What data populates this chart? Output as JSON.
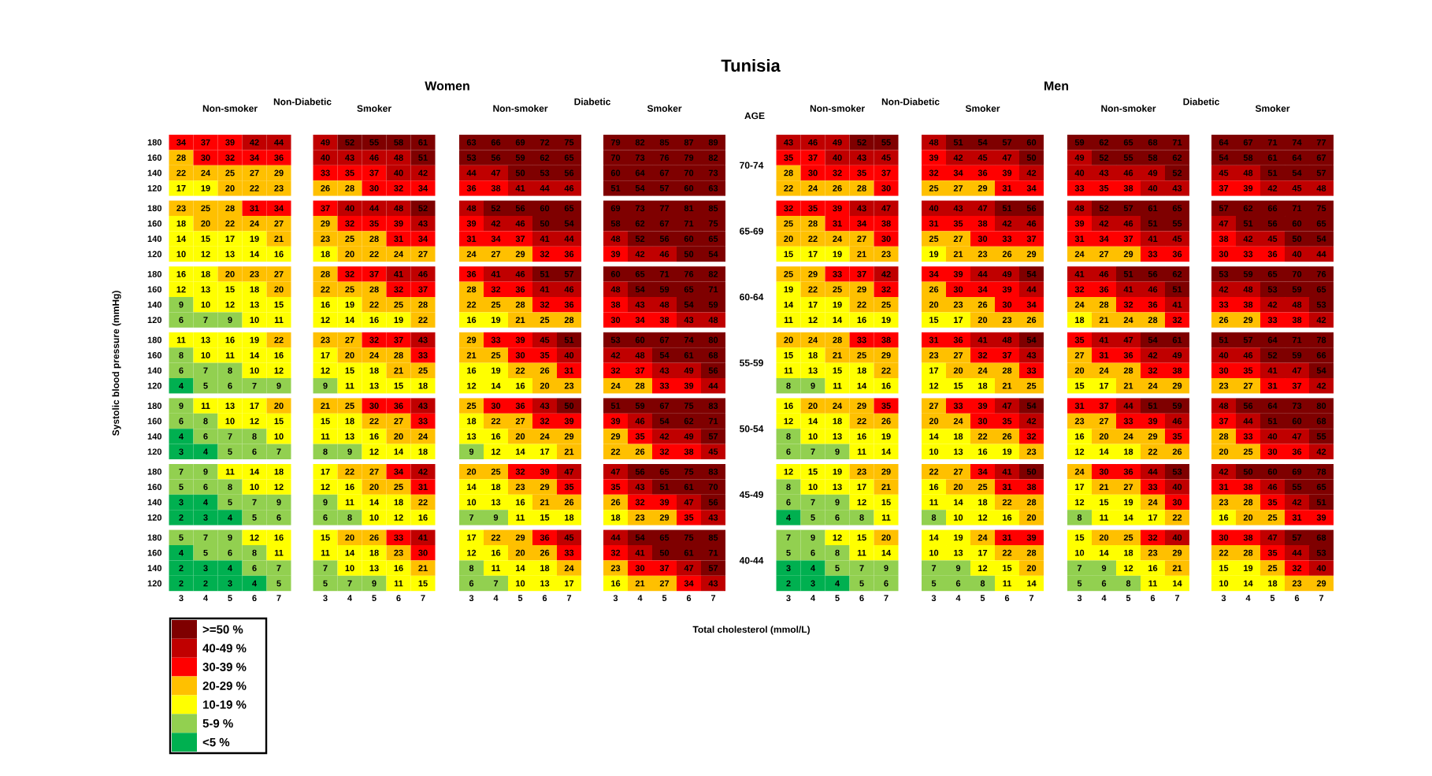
{
  "chart_data": [
    {
      "type": "other",
      "title": "Tunisia",
      "xlabel": "Total cholesterol (mmol/L)",
      "ylabel": "Systolic blood pressure (mmHg)",
      "annotations": [
        "Women",
        "Men",
        "Non-Diabetic",
        "Diabetic",
        "Non-Diabetic",
        "Diabetic",
        "AGE",
        "70-74",
        "65-69",
        "60-64",
        "55-59",
        "50-54",
        "45-49",
        "40-44"
      ]
    },
    {
      "type": "heatmap",
      "title": "Non-smoker",
      "categories": [
        "3",
        "4",
        "5",
        "6",
        "7"
      ],
      "y_categories": [
        "180",
        "160",
        "140",
        "120",
        "180",
        "160",
        "140",
        "120",
        "180",
        "160",
        "140",
        "120",
        "180",
        "160",
        "140",
        "120",
        "180",
        "160",
        "140",
        "120",
        "180",
        "160",
        "140",
        "120",
        "180",
        "160",
        "140",
        "120"
      ],
      "data_labels": true,
      "cells": [
        [
          34,
          37,
          39,
          42,
          44
        ],
        [
          28,
          30,
          32,
          34,
          36
        ],
        [
          22,
          24,
          25,
          27,
          29
        ],
        [
          17,
          19,
          20,
          22,
          23
        ],
        [
          23,
          25,
          28,
          31,
          34
        ],
        [
          18,
          20,
          22,
          24,
          27
        ],
        [
          14,
          15,
          17,
          19,
          21
        ],
        [
          10,
          12,
          13,
          14,
          16
        ],
        [
          16,
          18,
          20,
          23,
          27
        ],
        [
          12,
          13,
          15,
          18,
          20
        ],
        [
          9,
          10,
          12,
          13,
          15
        ],
        [
          6,
          7,
          9,
          10,
          11
        ],
        [
          11,
          13,
          16,
          19,
          22
        ],
        [
          8,
          10,
          11,
          14,
          16
        ],
        [
          6,
          7,
          8,
          10,
          12
        ],
        [
          4,
          5,
          6,
          7,
          9
        ],
        [
          9,
          11,
          13,
          17,
          20
        ],
        [
          6,
          8,
          10,
          12,
          15
        ],
        [
          4,
          6,
          7,
          8,
          10
        ],
        [
          3,
          4,
          5,
          6,
          7
        ],
        [
          7,
          9,
          11,
          14,
          18
        ],
        [
          5,
          6,
          8,
          10,
          12
        ],
        [
          3,
          4,
          5,
          7,
          9
        ],
        [
          2,
          3,
          4,
          5,
          6
        ],
        [
          5,
          7,
          9,
          12,
          16
        ],
        [
          4,
          5,
          6,
          8,
          11
        ],
        [
          2,
          3,
          4,
          6,
          7
        ],
        [
          2,
          2,
          3,
          4,
          5
        ]
      ]
    },
    {
      "type": "heatmap",
      "title": "Smoker",
      "tick_labels": "x",
      "categories": [
        "3",
        "4",
        "5",
        "6",
        "7"
      ],
      "y_categories": [
        null,
        null,
        null,
        null,
        null,
        null,
        null,
        null,
        null,
        null,
        null,
        null,
        null,
        null,
        null,
        null,
        null,
        null,
        null,
        null,
        null,
        null,
        null,
        null,
        null,
        null,
        null,
        null
      ],
      "data_labels": true,
      "cells": [
        [
          49,
          52,
          55,
          58,
          61
        ],
        [
          40,
          43,
          46,
          48,
          51
        ],
        [
          33,
          35,
          37,
          40,
          42
        ],
        [
          26,
          28,
          30,
          32,
          34
        ],
        [
          37,
          40,
          44,
          48,
          52
        ],
        [
          29,
          32,
          35,
          39,
          43
        ],
        [
          23,
          25,
          28,
          31,
          34
        ],
        [
          18,
          20,
          22,
          24,
          27
        ],
        [
          28,
          32,
          37,
          41,
          46
        ],
        [
          22,
          25,
          28,
          32,
          37
        ],
        [
          16,
          19,
          22,
          25,
          28
        ],
        [
          12,
          14,
          16,
          19,
          22
        ],
        [
          23,
          27,
          32,
          37,
          43
        ],
        [
          17,
          20,
          24,
          28,
          33
        ],
        [
          12,
          15,
          18,
          21,
          25
        ],
        [
          9,
          11,
          13,
          15,
          18
        ],
        [
          21,
          25,
          30,
          36,
          43
        ],
        [
          15,
          18,
          22,
          27,
          33
        ],
        [
          11,
          13,
          16,
          20,
          24
        ],
        [
          8,
          9,
          12,
          14,
          18
        ],
        [
          17,
          22,
          27,
          34,
          42
        ],
        [
          12,
          16,
          20,
          25,
          31
        ],
        [
          9,
          11,
          14,
          18,
          22
        ],
        [
          6,
          8,
          10,
          12,
          16
        ],
        [
          15,
          20,
          26,
          33,
          41
        ],
        [
          11,
          14,
          18,
          23,
          30
        ],
        [
          7,
          10,
          13,
          16,
          21
        ],
        [
          5,
          7,
          9,
          11,
          15
        ]
      ]
    },
    {
      "type": "heatmap",
      "title": "Non-smoker",
      "tick_labels": "x",
      "categories": [
        "3",
        "4",
        "5",
        "6",
        "7"
      ],
      "y_categories": [
        null,
        null,
        null,
        null,
        null,
        null,
        null,
        null,
        null,
        null,
        null,
        null,
        null,
        null,
        null,
        null,
        null,
        null,
        null,
        null,
        null,
        null,
        null,
        null,
        null,
        null,
        null,
        null
      ],
      "data_labels": true,
      "cells": [
        [
          63,
          66,
          69,
          72,
          75
        ],
        [
          53,
          56,
          59,
          62,
          65
        ],
        [
          44,
          47,
          50,
          53,
          56
        ],
        [
          36,
          38,
          41,
          44,
          46
        ],
        [
          48,
          52,
          56,
          60,
          65
        ],
        [
          39,
          42,
          46,
          50,
          54
        ],
        [
          31,
          34,
          37,
          41,
          44
        ],
        [
          24,
          27,
          29,
          32,
          36
        ],
        [
          36,
          41,
          46,
          51,
          57
        ],
        [
          28,
          32,
          36,
          41,
          46
        ],
        [
          22,
          25,
          28,
          32,
          36
        ],
        [
          16,
          19,
          21,
          25,
          28
        ],
        [
          29,
          33,
          39,
          45,
          51
        ],
        [
          21,
          25,
          30,
          35,
          40
        ],
        [
          16,
          19,
          22,
          26,
          31
        ],
        [
          12,
          14,
          16,
          20,
          23
        ],
        [
          25,
          30,
          36,
          43,
          50
        ],
        [
          18,
          22,
          27,
          32,
          39
        ],
        [
          13,
          16,
          20,
          24,
          29
        ],
        [
          9,
          12,
          14,
          17,
          21
        ],
        [
          20,
          25,
          32,
          39,
          47
        ],
        [
          14,
          18,
          23,
          29,
          35
        ],
        [
          10,
          13,
          16,
          21,
          26
        ],
        [
          7,
          9,
          11,
          15,
          18
        ],
        [
          17,
          22,
          29,
          36,
          45
        ],
        [
          12,
          16,
          20,
          26,
          33
        ],
        [
          8,
          11,
          14,
          18,
          24
        ],
        [
          6,
          7,
          10,
          13,
          17
        ]
      ]
    },
    {
      "type": "heatmap",
      "title": "Smoker",
      "tick_labels": "x",
      "categories": [
        "3",
        "4",
        "5",
        "6",
        "7"
      ],
      "y_categories": [
        null,
        null,
        null,
        null,
        null,
        null,
        null,
        null,
        null,
        null,
        null,
        null,
        null,
        null,
        null,
        null,
        null,
        null,
        null,
        null,
        null,
        null,
        null,
        null,
        null,
        null,
        null,
        null
      ],
      "data_labels": true,
      "cells": [
        [
          79,
          82,
          85,
          87,
          89
        ],
        [
          70,
          73,
          76,
          79,
          82
        ],
        [
          60,
          64,
          67,
          70,
          73
        ],
        [
          51,
          54,
          57,
          60,
          63
        ],
        [
          69,
          73,
          77,
          81,
          85
        ],
        [
          58,
          62,
          67,
          71,
          75
        ],
        [
          48,
          52,
          56,
          60,
          65
        ],
        [
          39,
          42,
          46,
          50,
          54
        ],
        [
          60,
          65,
          71,
          76,
          82
        ],
        [
          48,
          54,
          59,
          65,
          71
        ],
        [
          38,
          43,
          48,
          54,
          59
        ],
        [
          30,
          34,
          38,
          43,
          48
        ],
        [
          53,
          60,
          67,
          74,
          80
        ],
        [
          42,
          48,
          54,
          61,
          68
        ],
        [
          32,
          37,
          43,
          49,
          56
        ],
        [
          24,
          28,
          33,
          39,
          44
        ],
        [
          51,
          59,
          67,
          75,
          83
        ],
        [
          39,
          46,
          54,
          62,
          71
        ],
        [
          29,
          35,
          42,
          49,
          57
        ],
        [
          22,
          26,
          32,
          38,
          45
        ],
        [
          47,
          56,
          65,
          75,
          83
        ],
        [
          35,
          43,
          51,
          61,
          70
        ],
        [
          26,
          32,
          39,
          47,
          56
        ],
        [
          18,
          23,
          29,
          35,
          43
        ],
        [
          44,
          54,
          65,
          75,
          85
        ],
        [
          32,
          41,
          50,
          61,
          71
        ],
        [
          23,
          30,
          37,
          47,
          57
        ],
        [
          16,
          21,
          27,
          34,
          43
        ]
      ]
    },
    {
      "type": "heatmap",
      "title": "Non-smoker",
      "tick_labels": "x",
      "categories": [
        "3",
        "4",
        "5",
        "6",
        "7"
      ],
      "y_categories": [
        null,
        null,
        null,
        null,
        null,
        null,
        null,
        null,
        null,
        null,
        null,
        null,
        null,
        null,
        null,
        null,
        null,
        null,
        null,
        null,
        null,
        null,
        null,
        null,
        null,
        null,
        null,
        null
      ],
      "data_labels": true,
      "cells": [
        [
          43,
          46,
          49,
          52,
          55
        ],
        [
          35,
          37,
          40,
          43,
          45
        ],
        [
          28,
          30,
          32,
          35,
          37
        ],
        [
          22,
          24,
          26,
          28,
          30
        ],
        [
          32,
          35,
          39,
          43,
          47
        ],
        [
          25,
          28,
          31,
          34,
          38
        ],
        [
          20,
          22,
          24,
          27,
          30
        ],
        [
          15,
          17,
          19,
          21,
          23
        ],
        [
          25,
          29,
          33,
          37,
          42
        ],
        [
          19,
          22,
          25,
          29,
          32
        ],
        [
          14,
          17,
          19,
          22,
          25
        ],
        [
          11,
          12,
          14,
          16,
          19
        ],
        [
          20,
          24,
          28,
          33,
          38
        ],
        [
          15,
          18,
          21,
          25,
          29
        ],
        [
          11,
          13,
          15,
          18,
          22
        ],
        [
          8,
          9,
          11,
          14,
          16
        ],
        [
          16,
          20,
          24,
          29,
          35
        ],
        [
          12,
          14,
          18,
          22,
          26
        ],
        [
          8,
          10,
          13,
          16,
          19
        ],
        [
          6,
          7,
          9,
          11,
          14
        ],
        [
          12,
          15,
          19,
          23,
          29
        ],
        [
          8,
          10,
          13,
          17,
          21
        ],
        [
          6,
          7,
          9,
          12,
          15
        ],
        [
          4,
          5,
          6,
          8,
          11
        ],
        [
          7,
          9,
          12,
          15,
          20
        ],
        [
          5,
          6,
          8,
          11,
          14
        ],
        [
          3,
          4,
          5,
          7,
          9
        ],
        [
          2,
          3,
          4,
          5,
          6
        ]
      ]
    },
    {
      "type": "heatmap",
      "title": "Smoker",
      "tick_labels": "x",
      "categories": [
        "3",
        "4",
        "5",
        "6",
        "7"
      ],
      "y_categories": [
        null,
        null,
        null,
        null,
        null,
        null,
        null,
        null,
        null,
        null,
        null,
        null,
        null,
        null,
        null,
        null,
        null,
        null,
        null,
        null,
        null,
        null,
        null,
        null,
        null,
        null,
        null,
        null
      ],
      "data_labels": true,
      "cells": [
        [
          48,
          51,
          54,
          57,
          60
        ],
        [
          39,
          42,
          45,
          47,
          50
        ],
        [
          32,
          34,
          36,
          39,
          42
        ],
        [
          25,
          27,
          29,
          31,
          34
        ],
        [
          40,
          43,
          47,
          51,
          56
        ],
        [
          31,
          35,
          38,
          42,
          46
        ],
        [
          25,
          27,
          30,
          33,
          37
        ],
        [
          19,
          21,
          23,
          26,
          29
        ],
        [
          34,
          39,
          44,
          49,
          54
        ],
        [
          26,
          30,
          34,
          39,
          44
        ],
        [
          20,
          23,
          26,
          30,
          34
        ],
        [
          15,
          17,
          20,
          23,
          26
        ],
        [
          31,
          36,
          41,
          48,
          54
        ],
        [
          23,
          27,
          32,
          37,
          43
        ],
        [
          17,
          20,
          24,
          28,
          33
        ],
        [
          12,
          15,
          18,
          21,
          25
        ],
        [
          27,
          33,
          39,
          47,
          54
        ],
        [
          20,
          24,
          30,
          35,
          42
        ],
        [
          14,
          18,
          22,
          26,
          32
        ],
        [
          10,
          13,
          16,
          19,
          23
        ],
        [
          22,
          27,
          34,
          41,
          50
        ],
        [
          16,
          20,
          25,
          31,
          38
        ],
        [
          11,
          14,
          18,
          22,
          28
        ],
        [
          8,
          10,
          12,
          16,
          20
        ],
        [
          14,
          19,
          24,
          31,
          39
        ],
        [
          10,
          13,
          17,
          22,
          28
        ],
        [
          7,
          9,
          12,
          15,
          20
        ],
        [
          5,
          6,
          8,
          11,
          14
        ]
      ]
    },
    {
      "type": "heatmap",
      "title": "Non-smoker",
      "tick_labels": "x",
      "categories": [
        "3",
        "4",
        "5",
        "6",
        "7"
      ],
      "y_categories": [
        null,
        null,
        null,
        null,
        null,
        null,
        null,
        null,
        null,
        null,
        null,
        null,
        null,
        null,
        null,
        null,
        null,
        null,
        null,
        null,
        null,
        null,
        null,
        null,
        null,
        null,
        null,
        null
      ],
      "data_labels": true,
      "cells": [
        [
          59,
          62,
          65,
          68,
          71
        ],
        [
          49,
          52,
          55,
          58,
          62
        ],
        [
          40,
          43,
          46,
          49,
          52
        ],
        [
          33,
          35,
          38,
          40,
          43
        ],
        [
          48,
          52,
          57,
          61,
          65
        ],
        [
          39,
          42,
          46,
          51,
          55
        ],
        [
          31,
          34,
          37,
          41,
          45
        ],
        [
          24,
          27,
          29,
          33,
          36
        ],
        [
          41,
          46,
          51,
          56,
          62
        ],
        [
          32,
          36,
          41,
          46,
          51
        ],
        [
          24,
          28,
          32,
          36,
          41
        ],
        [
          18,
          21,
          24,
          28,
          32
        ],
        [
          35,
          41,
          47,
          54,
          61
        ],
        [
          27,
          31,
          36,
          42,
          49
        ],
        [
          20,
          24,
          28,
          32,
          38
        ],
        [
          15,
          17,
          21,
          24,
          29
        ],
        [
          31,
          37,
          44,
          51,
          59
        ],
        [
          23,
          27,
          33,
          39,
          46
        ],
        [
          16,
          20,
          24,
          29,
          35
        ],
        [
          12,
          14,
          18,
          22,
          26
        ],
        [
          24,
          30,
          36,
          44,
          53
        ],
        [
          17,
          21,
          27,
          33,
          40
        ],
        [
          12,
          15,
          19,
          24,
          30
        ],
        [
          8,
          11,
          14,
          17,
          22
        ],
        [
          15,
          20,
          25,
          32,
          40
        ],
        [
          10,
          14,
          18,
          23,
          29
        ],
        [
          7,
          9,
          12,
          16,
          21
        ],
        [
          5,
          6,
          8,
          11,
          14
        ]
      ]
    },
    {
      "type": "heatmap",
      "title": "Smoker",
      "tick_labels": "x",
      "categories": [
        "3",
        "4",
        "5",
        "6",
        "7"
      ],
      "y_categories": [
        null,
        null,
        null,
        null,
        null,
        null,
        null,
        null,
        null,
        null,
        null,
        null,
        null,
        null,
        null,
        null,
        null,
        null,
        null,
        null,
        null,
        null,
        null,
        null,
        null,
        null,
        null,
        null
      ],
      "data_labels": true,
      "cells": [
        [
          64,
          67,
          71,
          74,
          77
        ],
        [
          54,
          58,
          61,
          64,
          67
        ],
        [
          45,
          48,
          51,
          54,
          57
        ],
        [
          37,
          39,
          42,
          45,
          48
        ],
        [
          57,
          62,
          66,
          71,
          75
        ],
        [
          47,
          51,
          56,
          60,
          65
        ],
        [
          38,
          42,
          45,
          50,
          54
        ],
        [
          30,
          33,
          36,
          40,
          44
        ],
        [
          53,
          59,
          65,
          70,
          76
        ],
        [
          42,
          48,
          53,
          59,
          65
        ],
        [
          33,
          38,
          42,
          48,
          53
        ],
        [
          26,
          29,
          33,
          38,
          42
        ],
        [
          51,
          57,
          64,
          71,
          78
        ],
        [
          40,
          46,
          52,
          59,
          66
        ],
        [
          30,
          35,
          41,
          47,
          54
        ],
        [
          23,
          27,
          31,
          37,
          42
        ],
        [
          48,
          56,
          64,
          73,
          80
        ],
        [
          37,
          44,
          51,
          60,
          68
        ],
        [
          28,
          33,
          40,
          47,
          55
        ],
        [
          20,
          25,
          30,
          36,
          42
        ],
        [
          42,
          50,
          60,
          69,
          78
        ],
        [
          31,
          38,
          46,
          55,
          65
        ],
        [
          23,
          28,
          35,
          42,
          51
        ],
        [
          16,
          20,
          25,
          31,
          39
        ],
        [
          30,
          38,
          47,
          57,
          68
        ],
        [
          22,
          28,
          35,
          44,
          53
        ],
        [
          15,
          19,
          25,
          32,
          40
        ],
        [
          10,
          14,
          18,
          23,
          29
        ]
      ]
    },
    {
      "type": "other",
      "categories": [
        ">=50 %",
        "40-49 %",
        "30-39 %",
        "20-29 %",
        "10-19 %",
        "5-9 %",
        "<5 %"
      ],
      "colors": [
        "#7f0000",
        "#c00000",
        "#ff0000",
        "#ffc000",
        "#ffff00",
        "#92d050",
        "#00b050"
      ]
    }
  ]
}
